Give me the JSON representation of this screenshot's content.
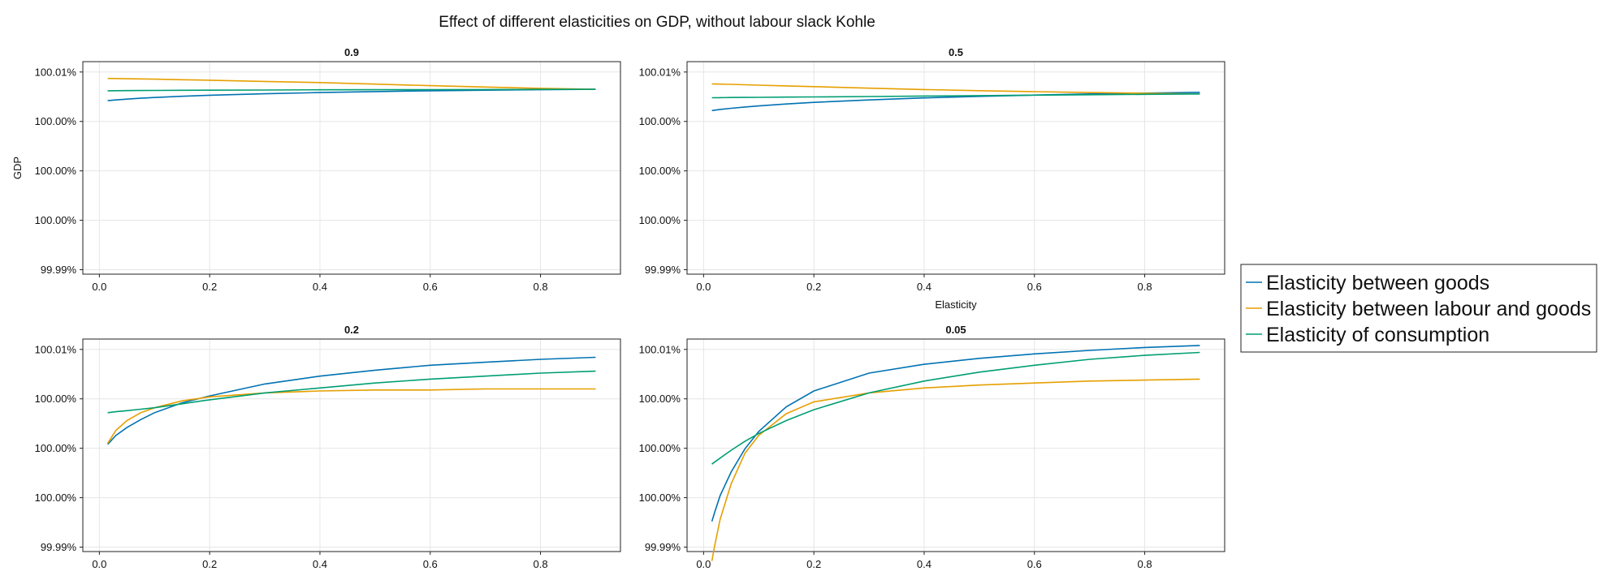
{
  "figure": {
    "title": "Effect of different elasticities on GDP, without labour slack Kohle"
  },
  "legend": {
    "placement": "right",
    "entries": [
      {
        "name": "Elasticity between goods",
        "color": "#0072B2"
      },
      {
        "name": "Elasticity between labour and goods",
        "color": "#E69F00"
      },
      {
        "name": "Elasticity of consumption",
        "color": "#009E73"
      }
    ]
  },
  "chart_data": [
    {
      "type": "line",
      "title": "0.9",
      "xlabel": "",
      "ylabel": "GDP",
      "xlim": [
        -0.03,
        0.945
      ],
      "ylim": [
        99.98955,
        100.01105
      ],
      "xticks": [
        0.0,
        0.2,
        0.4,
        0.6,
        0.8
      ],
      "xtick_labels": [
        "0.0",
        "0.2",
        "0.4",
        "0.6",
        "0.8"
      ],
      "yticks": [
        99.99,
        99.995,
        100.0,
        100.005,
        100.01
      ],
      "ytick_labels": [
        "99.99%",
        "100.00%",
        "100.00%",
        "100.00%",
        "100.01%"
      ],
      "grid": true,
      "x": [
        0.015,
        0.03,
        0.05,
        0.075,
        0.1,
        0.15,
        0.2,
        0.3,
        0.4,
        0.5,
        0.6,
        0.7,
        0.8,
        0.9
      ],
      "series": [
        {
          "name": "Elasticity between goods",
          "values": [
            100.0071,
            100.00718,
            100.00726,
            100.00735,
            100.00742,
            100.00755,
            100.00765,
            100.0078,
            100.00792,
            100.00802,
            100.0081,
            100.00816,
            100.00821,
            100.00825
          ]
        },
        {
          "name": "Elasticity between labour and goods",
          "values": [
            100.00935,
            100.00934,
            100.00932,
            100.0093,
            100.00928,
            100.00922,
            100.00917,
            100.00905,
            100.00893,
            100.00878,
            100.00862,
            100.00848,
            100.00835,
            100.00825
          ]
        },
        {
          "name": "Elasticity of consumption",
          "values": [
            100.0081,
            100.00811,
            100.00812,
            100.00813,
            100.00814,
            100.00815,
            100.00816,
            100.00818,
            100.0082,
            100.00821,
            100.00822,
            100.00823,
            100.00824,
            100.00825
          ]
        }
      ]
    },
    {
      "type": "line",
      "title": "0.5",
      "xlabel": "Elasticity",
      "ylabel": "",
      "xlim": [
        -0.03,
        0.945
      ],
      "ylim": [
        99.98955,
        100.01105
      ],
      "xticks": [
        0.0,
        0.2,
        0.4,
        0.6,
        0.8
      ],
      "xtick_labels": [
        "0.0",
        "0.2",
        "0.4",
        "0.6",
        "0.8"
      ],
      "yticks": [
        99.99,
        99.995,
        100.0,
        100.005,
        100.01
      ],
      "ytick_labels": [
        "99.99%",
        "100.00%",
        "100.00%",
        "100.00%",
        "100.01%"
      ],
      "grid": true,
      "x": [
        0.015,
        0.03,
        0.05,
        0.075,
        0.1,
        0.15,
        0.2,
        0.3,
        0.4,
        0.5,
        0.6,
        0.7,
        0.8,
        0.9
      ],
      "series": [
        {
          "name": "Elasticity between goods",
          "values": [
            100.0061,
            100.00622,
            100.00633,
            100.00646,
            100.00657,
            100.00677,
            100.00693,
            100.00718,
            100.00738,
            100.00754,
            100.00767,
            100.00778,
            100.00787,
            100.00795
          ]
        },
        {
          "name": "Elasticity between labour and goods",
          "values": [
            100.0088,
            100.00878,
            100.00875,
            100.00871,
            100.00867,
            100.0086,
            100.00852,
            100.00837,
            100.00823,
            100.00811,
            100.00801,
            100.00792,
            100.00785,
            100.00778
          ]
        },
        {
          "name": "Elasticity of consumption",
          "values": [
            100.0074,
            100.00741,
            100.00742,
            100.00743,
            100.00744,
            100.00746,
            100.00748,
            100.00752,
            100.00757,
            100.00761,
            100.00766,
            100.0077,
            100.00774,
            100.00778
          ]
        }
      ]
    },
    {
      "type": "line",
      "title": "0.2",
      "xlabel": "",
      "ylabel": "",
      "xlim": [
        -0.03,
        0.945
      ],
      "ylim": [
        99.98955,
        100.01105
      ],
      "xticks": [
        0.0,
        0.2,
        0.4,
        0.6,
        0.8
      ],
      "xtick_labels": [
        "0.0",
        "0.2",
        "0.4",
        "0.6",
        "0.8"
      ],
      "yticks": [
        99.99,
        99.995,
        100.0,
        100.005,
        100.01
      ],
      "ytick_labels": [
        "99.99%",
        "100.00%",
        "100.00%",
        "100.00%",
        "100.01%"
      ],
      "grid": true,
      "x": [
        0.015,
        0.03,
        0.05,
        0.075,
        0.1,
        0.15,
        0.2,
        0.3,
        0.4,
        0.5,
        0.6,
        0.7,
        0.8,
        0.9
      ],
      "series": [
        {
          "name": "Elasticity between goods",
          "values": [
            100.0004,
            100.0013,
            100.0021,
            100.0029,
            100.0036,
            100.0046,
            100.0053,
            100.0065,
            100.0073,
            100.0079,
            100.0084,
            100.0087,
            100.009,
            100.0092
          ]
        },
        {
          "name": "Elasticity between labour and goods",
          "values": [
            100.0005,
            100.0018,
            100.0028,
            100.0036,
            100.0041,
            100.0048,
            100.0052,
            100.0056,
            100.0058,
            100.0059,
            100.0059,
            100.006,
            100.006,
            100.006
          ]
        },
        {
          "name": "Elasticity of consumption",
          "values": [
            100.0036,
            100.0037,
            100.0038,
            100.00395,
            100.0041,
            100.0045,
            100.0049,
            100.0056,
            100.0061,
            100.0066,
            100.007,
            100.0073,
            100.0076,
            100.0078
          ]
        }
      ]
    },
    {
      "type": "line",
      "title": "0.05",
      "xlabel": "",
      "ylabel": "",
      "xlim": [
        -0.03,
        0.945
      ],
      "ylim": [
        99.98955,
        100.01105
      ],
      "xticks": [
        0.0,
        0.2,
        0.4,
        0.6,
        0.8
      ],
      "xtick_labels": [
        "0.0",
        "0.2",
        "0.4",
        "0.6",
        "0.8"
      ],
      "yticks": [
        99.99,
        99.995,
        100.0,
        100.005,
        100.01
      ],
      "ytick_labels": [
        "99.99%",
        "100.00%",
        "100.00%",
        "100.00%",
        "100.01%"
      ],
      "grid": true,
      "x": [
        0.015,
        0.02,
        0.03,
        0.05,
        0.075,
        0.1,
        0.15,
        0.2,
        0.3,
        0.4,
        0.5,
        0.6,
        0.7,
        0.8,
        0.9
      ],
      "series": [
        {
          "name": "Elasticity between goods",
          "values": [
            99.9926,
            99.9935,
            99.9952,
            99.9976,
            99.99995,
            100.0017,
            100.0042,
            100.0058,
            100.0076,
            100.0085,
            100.0091,
            100.00955,
            100.0099,
            100.0102,
            100.0104
          ]
        },
        {
          "name": "Elasticity between labour and goods",
          "values": [
            99.9886,
            99.9901,
            99.9928,
            99.9964,
            99.9995,
            100.0013,
            100.0035,
            100.0047,
            100.0056,
            100.0061,
            100.0064,
            100.0066,
            100.0068,
            100.0069,
            100.007
          ]
        },
        {
          "name": "Elasticity of consumption",
          "values": [
            99.9984,
            99.9986,
            99.999,
            99.9998,
            100.0007,
            100.0015,
            100.0028,
            100.0039,
            100.0056,
            100.0068,
            100.0077,
            100.0084,
            100.009,
            100.0094,
            100.0097
          ]
        }
      ]
    }
  ]
}
